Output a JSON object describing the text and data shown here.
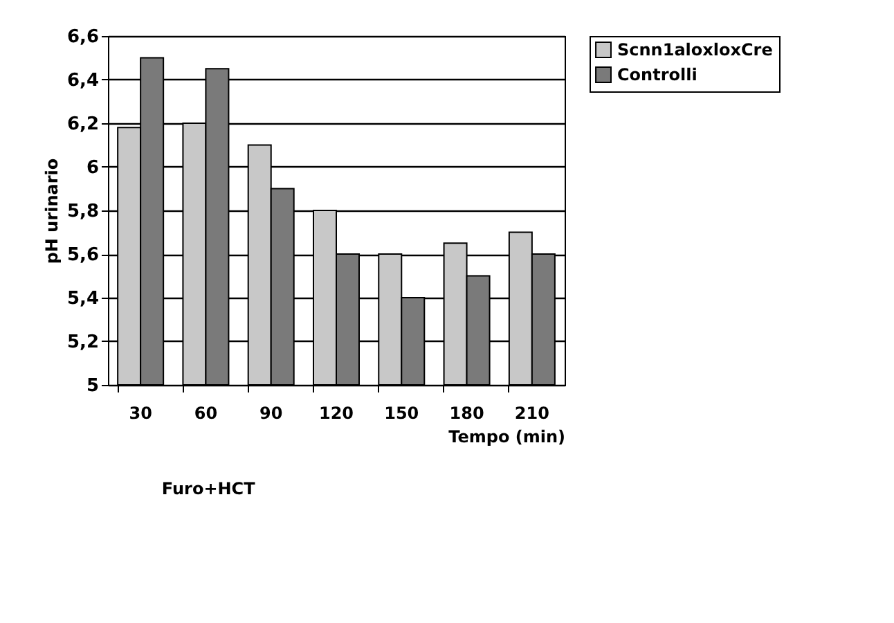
{
  "chart_data": {
    "type": "bar",
    "xlabel": "Tempo (min)",
    "ylabel": "pH urinario",
    "categories": [
      "30",
      "60",
      "90",
      "120",
      "150",
      "180",
      "210"
    ],
    "series": [
      {
        "name": "Scnn1aloxloxCre",
        "color": "#c8c8c8",
        "values": [
          6.18,
          6.2,
          6.1,
          5.8,
          5.6,
          5.65,
          5.7
        ]
      },
      {
        "name": "Controlli",
        "color": "#7a7a7a",
        "values": [
          6.5,
          6.45,
          5.9,
          5.6,
          5.4,
          5.5,
          5.6
        ]
      }
    ],
    "ylim": [
      5,
      6.6
    ],
    "yticks": [
      5,
      {
        "value": 5.2,
        "label": "5,2"
      },
      {
        "value": 5.4,
        "label": "5,4"
      },
      {
        "value": 5.6,
        "label": "5,6"
      },
      {
        "value": 5.8,
        "label": "5,8"
      },
      6,
      {
        "value": 6.2,
        "label": "6,2"
      },
      {
        "value": 6.4,
        "label": "6,4"
      },
      {
        "value": 6.6,
        "label": "6,6"
      }
    ],
    "grid": "y",
    "legend": "top right",
    "annotations": [
      "Furo+HCT"
    ]
  }
}
